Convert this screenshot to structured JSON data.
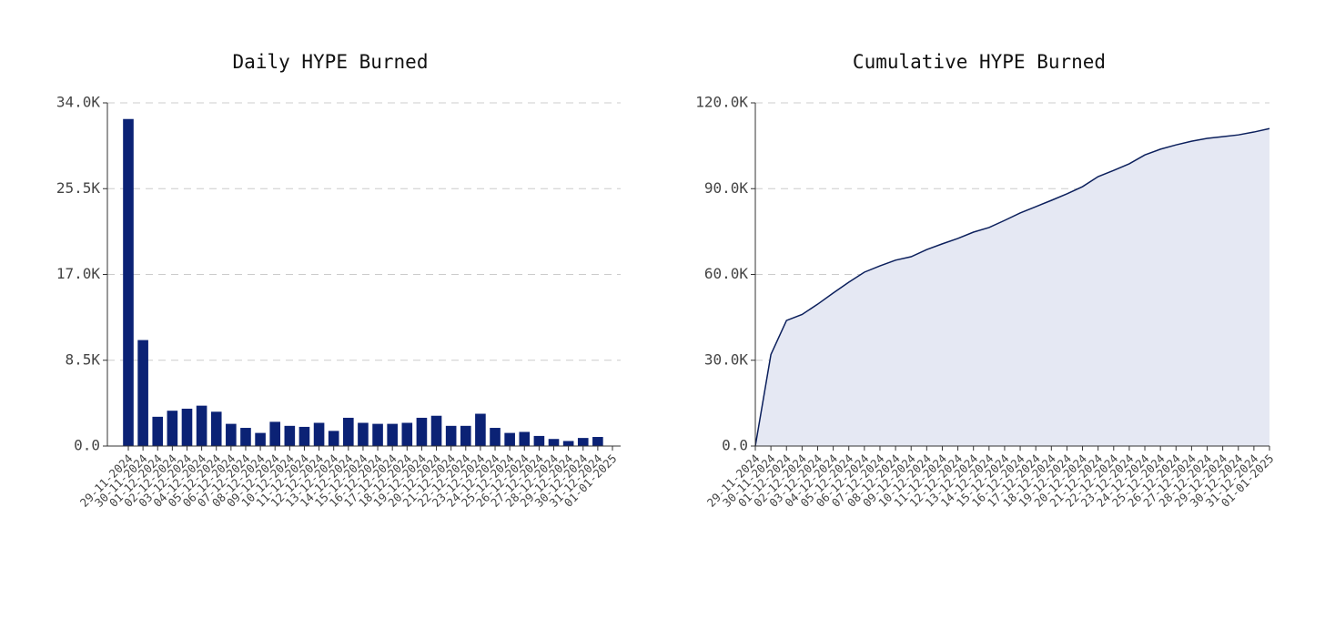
{
  "chart_data": [
    {
      "type": "bar",
      "title": "Daily HYPE Burned",
      "color": "#0b2275",
      "categories": [
        "29-11-2024",
        "30-11-2024",
        "01-12-2024",
        "02-12-2024",
        "03-12-2024",
        "04-12-2024",
        "05-12-2024",
        "06-12-2024",
        "07-12-2024",
        "08-12-2024",
        "09-12-2024",
        "10-12-2024",
        "11-12-2024",
        "12-12-2024",
        "13-12-2024",
        "14-12-2024",
        "15-12-2024",
        "16-12-2024",
        "17-12-2024",
        "18-12-2024",
        "19-12-2024",
        "20-12-2024",
        "21-12-2024",
        "22-12-2024",
        "23-12-2024",
        "24-12-2024",
        "25-12-2024",
        "26-12-2024",
        "27-12-2024",
        "28-12-2024",
        "29-12-2024",
        "30-12-2024",
        "31-12-2024",
        "01-01-2025"
      ],
      "values": [
        32400,
        10500,
        2900,
        3500,
        3700,
        4000,
        3400,
        2200,
        1800,
        1300,
        2400,
        2000,
        1900,
        2300,
        1500,
        2800,
        2300,
        2200,
        2200,
        2300,
        2800,
        3000,
        2000,
        2000,
        3200,
        1800,
        1300,
        1400,
        1000,
        700,
        500,
        800,
        900,
        0
      ],
      "ylim": [
        0,
        34000
      ],
      "yticks": [
        {
          "value": 0,
          "label": "0.0"
        },
        {
          "value": 8500,
          "label": "8.5K"
        },
        {
          "value": 17000,
          "label": "17.0K"
        },
        {
          "value": 25500,
          "label": "25.5K"
        },
        {
          "value": 34000,
          "label": "34.0K"
        }
      ],
      "grid": true
    },
    {
      "type": "area",
      "title": "Cumulative HYPE Burned",
      "color": "#0b1f5c",
      "fill": "#e5e8f3",
      "categories": [
        "29-11-2024",
        "30-11-2024",
        "01-12-2024",
        "02-12-2024",
        "03-12-2024",
        "04-12-2024",
        "05-12-2024",
        "06-12-2024",
        "07-12-2024",
        "08-12-2024",
        "09-12-2024",
        "10-12-2024",
        "11-12-2024",
        "12-12-2024",
        "13-12-2024",
        "14-12-2024",
        "15-12-2024",
        "16-12-2024",
        "17-12-2024",
        "18-12-2024",
        "19-12-2024",
        "20-12-2024",
        "21-12-2024",
        "22-12-2024",
        "23-12-2024",
        "24-12-2024",
        "25-12-2024",
        "26-12-2024",
        "27-12-2024",
        "28-12-2024",
        "29-12-2024",
        "30-12-2024",
        "31-12-2024",
        "01-01-2025"
      ],
      "values": [
        0,
        32000,
        43900,
        46000,
        49600,
        53500,
        57300,
        60800,
        63000,
        65000,
        66200,
        68700,
        70700,
        72600,
        74800,
        76400,
        78900,
        81500,
        83700,
        85900,
        88200,
        90700,
        94200,
        96400,
        98700,
        101800,
        103800,
        105300,
        106600,
        107600,
        108200,
        108800,
        109800,
        111000
      ],
      "ylim": [
        0,
        120000
      ],
      "yticks": [
        {
          "value": 0,
          "label": "0.0"
        },
        {
          "value": 30000,
          "label": "30.0K"
        },
        {
          "value": 60000,
          "label": "60.0K"
        },
        {
          "value": 90000,
          "label": "90.0K"
        },
        {
          "value": 120000,
          "label": "120.0K"
        }
      ],
      "grid": true
    }
  ]
}
